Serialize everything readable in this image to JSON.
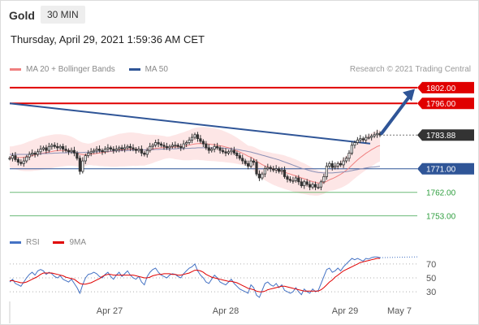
{
  "header": {
    "symbol": "Gold",
    "timeframe": "30 MIN"
  },
  "datetime": "Thursday, April 29, 2021 1:59:36 AM CET",
  "legend": {
    "bb_label": "MA 20 + Bollinger Bands",
    "ma50_label": "MA 50",
    "bb_color": "#f08080",
    "ma50_color": "#2f5597"
  },
  "copyright": "Research © 2021 Trading Central",
  "rsi_legend": {
    "rsi_label": "RSI",
    "ma_label": "9MA",
    "rsi_color": "#4472c4",
    "ma_color": "#e00000"
  },
  "colors": {
    "resistance": "#e00000",
    "support_blue": "#2f5597",
    "support_green": "#2e9e3e",
    "current": "#333333",
    "arrow": "#2f5597",
    "candle_up": "#333333",
    "candle_down": "#333333"
  },
  "chart_data": [
    {
      "type": "candlestick",
      "ylim": [
        1747,
        1806
      ],
      "x_ticks": [
        "Apr 27",
        "Apr 28",
        "Apr 29",
        "May 7"
      ],
      "levels": [
        {
          "label": "1802.00",
          "value": 1802.0,
          "kind": "resistance"
        },
        {
          "label": "1796.00",
          "value": 1796.0,
          "kind": "resistance"
        },
        {
          "label": "1783.88",
          "value": 1783.88,
          "kind": "current"
        },
        {
          "label": "1771.00",
          "value": 1771.0,
          "kind": "pivot"
        },
        {
          "label": "1762.00",
          "value": 1762.0,
          "kind": "support"
        },
        {
          "label": "1753.00",
          "value": 1753.0,
          "kind": "support"
        }
      ],
      "close": [
        1775.0,
        1776.0,
        1774.5,
        1773.5,
        1773.0,
        1774.0,
        1775.5,
        1776.5,
        1777.0,
        1776.5,
        1777.5,
        1778.5,
        1779.0,
        1778.0,
        1779.5,
        1780.0,
        1779.5,
        1779.0,
        1779.5,
        1778.5,
        1778.0,
        1777.5,
        1778.0,
        1777.0,
        1775.0,
        1770.0,
        1774.0,
        1776.0,
        1777.0,
        1777.5,
        1778.0,
        1778.5,
        1778.0,
        1777.5,
        1778.5,
        1779.0,
        1778.5,
        1778.0,
        1778.5,
        1779.0,
        1778.5,
        1779.0,
        1779.5,
        1779.0,
        1778.5,
        1778.0,
        1778.5,
        1777.0,
        1776.5,
        1778.0,
        1779.5,
        1780.0,
        1781.0,
        1780.5,
        1780.0,
        1779.5,
        1779.0,
        1779.5,
        1780.0,
        1780.0,
        1779.5,
        1779.0,
        1780.5,
        1781.0,
        1782.0,
        1783.0,
        1784.0,
        1782.5,
        1781.5,
        1780.5,
        1779.0,
        1778.0,
        1778.5,
        1779.5,
        1779.0,
        1778.0,
        1777.5,
        1777.0,
        1777.5,
        1778.0,
        1777.0,
        1776.0,
        1775.0,
        1774.0,
        1773.0,
        1772.0,
        1774.0,
        1773.5,
        1769.0,
        1767.5,
        1769.0,
        1771.0,
        1771.5,
        1771.0,
        1770.5,
        1771.0,
        1770.0,
        1770.5,
        1768.0,
        1767.0,
        1766.5,
        1766.5,
        1767.5,
        1766.0,
        1764.5,
        1766.0,
        1765.0,
        1764.0,
        1765.0,
        1764.0,
        1764.0,
        1766.0,
        1768.0,
        1772.0,
        1773.0,
        1771.5,
        1772.0,
        1773.0,
        1772.5,
        1774.0,
        1775.0,
        1777.0,
        1780.0,
        1781.0,
        1782.0,
        1782.5,
        1782.0,
        1783.0,
        1783.0,
        1783.5,
        1784.0,
        1784.5,
        1783.88
      ],
      "ma20": [
        1775.5,
        1775.3,
        1775.3,
        1775.3,
        1775.3,
        1775.4,
        1775.6,
        1775.8,
        1776.0,
        1776.3,
        1776.5,
        1776.8,
        1777.0,
        1777.2,
        1777.4,
        1777.6,
        1777.8,
        1777.9,
        1778.0,
        1778.0,
        1778.0,
        1777.9,
        1777.7,
        1777.4,
        1777.0,
        1776.6,
        1776.4,
        1776.4,
        1776.5,
        1776.6,
        1776.7,
        1776.9,
        1777.0,
        1777.2,
        1777.3,
        1777.5,
        1777.6,
        1777.7,
        1777.9,
        1778.1,
        1778.2,
        1778.3,
        1778.4,
        1778.5,
        1778.5,
        1778.4,
        1778.4,
        1778.3,
        1778.2,
        1778.3,
        1778.4,
        1778.6,
        1778.8,
        1778.9,
        1779.0,
        1779.1,
        1779.1,
        1779.2,
        1779.3,
        1779.3,
        1779.4,
        1779.5,
        1779.6,
        1779.8,
        1780.0,
        1780.3,
        1780.5,
        1780.6,
        1780.6,
        1780.6,
        1780.5,
        1780.4,
        1780.3,
        1780.2,
        1780.0,
        1779.8,
        1779.6,
        1779.3,
        1779.0,
        1778.7,
        1778.3,
        1777.9,
        1777.4,
        1776.9,
        1776.4,
        1775.8,
        1775.4,
        1774.8,
        1774.0,
        1773.2,
        1772.6,
        1772.1,
        1771.7,
        1771.3,
        1770.9,
        1770.6,
        1770.3,
        1770.0,
        1769.7,
        1769.3,
        1769.0,
        1768.6,
        1768.3,
        1767.9,
        1767.5,
        1767.2,
        1766.8,
        1766.4,
        1766.1,
        1765.8,
        1765.6,
        1765.6,
        1765.7,
        1766.2,
        1766.8,
        1767.2,
        1767.7,
        1768.3,
        1768.9,
        1769.6,
        1770.4,
        1771.3,
        1772.4,
        1773.4,
        1774.4,
        1775.3,
        1776.1,
        1776.9,
        1777.6,
        1778.3,
        1778.9,
        1779.5,
        1779.9
      ],
      "ma50": [
        1776.5,
        1776.5,
        1776.5,
        1776.5,
        1776.5,
        1776.5,
        1776.5,
        1776.6,
        1776.6,
        1776.6,
        1776.7,
        1776.7,
        1776.8,
        1776.8,
        1776.9,
        1776.9,
        1777.0,
        1777.0,
        1777.1,
        1777.1,
        1777.1,
        1777.2,
        1777.2,
        1777.2,
        1777.2,
        1777.2,
        1777.2,
        1777.3,
        1777.3,
        1777.4,
        1777.4,
        1777.5,
        1777.5,
        1777.6,
        1777.6,
        1777.7,
        1777.7,
        1777.8,
        1777.8,
        1777.9,
        1777.9,
        1778.0,
        1778.0,
        1778.1,
        1778.1,
        1778.1,
        1778.2,
        1778.2,
        1778.2,
        1778.3,
        1778.3,
        1778.3,
        1778.4,
        1778.4,
        1778.5,
        1778.5,
        1778.5,
        1778.6,
        1778.6,
        1778.6,
        1778.7,
        1778.7,
        1778.7,
        1778.8,
        1778.8,
        1778.9,
        1778.9,
        1779.0,
        1779.0,
        1779.0,
        1779.0,
        1779.0,
        1779.0,
        1779.0,
        1779.0,
        1778.9,
        1778.9,
        1778.8,
        1778.7,
        1778.6,
        1778.5,
        1778.4,
        1778.2,
        1778.0,
        1777.8,
        1777.6,
        1777.4,
        1777.1,
        1776.8,
        1776.5,
        1776.2,
        1775.9,
        1775.6,
        1775.3,
        1775.0,
        1774.7,
        1774.4,
        1774.0,
        1773.6,
        1773.2,
        1772.8,
        1772.4,
        1772.0,
        1771.6,
        1771.2,
        1770.9,
        1770.6,
        1770.3,
        1770.0,
        1769.8,
        1769.6,
        1769.5,
        1769.4,
        1769.4,
        1769.4,
        1769.4,
        1769.5,
        1769.6,
        1769.7,
        1769.8,
        1769.9,
        1770.1,
        1770.3,
        1770.5,
        1770.7,
        1770.9,
        1771.1,
        1771.3,
        1771.5,
        1771.6,
        1771.7,
        1771.8,
        1771.9
      ],
      "bb_width": 4.0
    },
    {
      "type": "line",
      "name": "RSI panel",
      "ylim": [
        15,
        85
      ],
      "y_ticks": [
        "70",
        "50",
        "30"
      ],
      "rsi": [
        44,
        48,
        42,
        40,
        38,
        44,
        50,
        55,
        58,
        54,
        60,
        62,
        60,
        55,
        58,
        56,
        52,
        50,
        53,
        48,
        46,
        44,
        48,
        42,
        36,
        28,
        40,
        50,
        55,
        56,
        58,
        56,
        52,
        50,
        55,
        58,
        52,
        48,
        54,
        58,
        52,
        56,
        60,
        54,
        50,
        48,
        52,
        44,
        40,
        52,
        58,
        62,
        64,
        58,
        54,
        52,
        50,
        54,
        56,
        55,
        52,
        50,
        56,
        60,
        64,
        66,
        70,
        60,
        54,
        50,
        44,
        42,
        48,
        54,
        50,
        44,
        42,
        40,
        44,
        48,
        42,
        38,
        34,
        32,
        30,
        28,
        40,
        36,
        25,
        22,
        32,
        42,
        44,
        40,
        38,
        42,
        36,
        40,
        32,
        30,
        28,
        30,
        36,
        30,
        26,
        34,
        30,
        28,
        34,
        30,
        32,
        42,
        52,
        62,
        64,
        58,
        60,
        64,
        60,
        66,
        70,
        74,
        78,
        76,
        78,
        76,
        74,
        78,
        77,
        79,
        80,
        80,
        79
      ],
      "ma9": [
        46,
        46,
        45,
        44,
        43,
        43,
        44,
        46,
        48,
        50,
        52,
        55,
        57,
        57,
        57,
        57,
        56,
        55,
        54,
        53,
        51,
        50,
        49,
        48,
        45,
        42,
        41,
        41,
        42,
        43,
        45,
        47,
        49,
        52,
        54,
        55,
        55,
        54,
        54,
        54,
        54,
        54,
        54,
        54,
        54,
        53,
        52,
        51,
        50,
        50,
        51,
        53,
        54,
        55,
        55,
        56,
        56,
        56,
        55,
        55,
        54,
        54,
        55,
        56,
        57,
        59,
        61,
        61,
        60,
        58,
        55,
        53,
        51,
        50,
        49,
        48,
        47,
        46,
        45,
        45,
        44,
        43,
        41,
        39,
        37,
        35,
        34,
        33,
        31,
        30,
        30,
        31,
        33,
        34,
        35,
        36,
        37,
        38,
        38,
        37,
        36,
        35,
        34,
        33,
        32,
        31,
        31,
        31,
        31,
        31,
        31,
        33,
        36,
        40,
        44,
        47,
        51,
        54,
        57,
        60,
        62,
        64,
        66,
        68,
        70,
        72,
        73,
        74,
        75,
        76,
        77,
        78,
        78
      ]
    }
  ]
}
